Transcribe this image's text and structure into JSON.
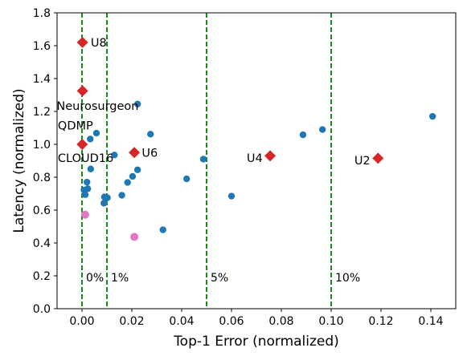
{
  "chart_data": {
    "type": "scatter",
    "xlabel": "Top-1 Error (normalized)",
    "ylabel": "Latency (normalized)",
    "xlim": [
      -0.01,
      0.15
    ],
    "ylim": [
      0.0,
      1.8
    ],
    "x_ticks": [
      0.0,
      0.02,
      0.04,
      0.06,
      0.08,
      0.1,
      0.12,
      0.14
    ],
    "x_tick_labels": [
      "0.00",
      "0.02",
      "0.04",
      "0.06",
      "0.08",
      "0.10",
      "0.12",
      "0.14"
    ],
    "y_ticks": [
      0.0,
      0.2,
      0.4,
      0.6,
      0.8,
      1.0,
      1.2,
      1.4,
      1.6,
      1.8
    ],
    "y_tick_labels": [
      "0.0",
      "0.2",
      "0.4",
      "0.6",
      "0.8",
      "1.0",
      "1.2",
      "1.4",
      "1.6",
      "1.8"
    ],
    "grid": false,
    "colors": {
      "blue": "#1f77b4",
      "pink": "#e377c2",
      "red": "#d62728",
      "green": "#008000"
    },
    "vlines": [
      {
        "x": 0.0,
        "label": "0%"
      },
      {
        "x": 0.01,
        "label": "1%"
      },
      {
        "x": 0.05,
        "label": "5%"
      },
      {
        "x": 0.1,
        "label": "10%"
      }
    ],
    "series": [
      {
        "marker": "circle",
        "color": "#1f77b4",
        "points": [
          {
            "x": 0.0223,
            "y": 1.245
          },
          {
            "x": 0.0275,
            "y": 1.062
          },
          {
            "x": 0.0058,
            "y": 1.068
          },
          {
            "x": 0.0033,
            "y": 1.032
          },
          {
            "x": 0.013,
            "y": 0.935
          },
          {
            "x": 0.0035,
            "y": 0.85
          },
          {
            "x": 0.0223,
            "y": 0.845
          },
          {
            "x": 0.0203,
            "y": 0.805
          },
          {
            "x": 0.0183,
            "y": 0.768
          },
          {
            "x": 0.002,
            "y": 0.77
          },
          {
            "x": 0.0023,
            "y": 0.73
          },
          {
            "x": 0.0008,
            "y": 0.722
          },
          {
            "x": 0.0013,
            "y": 0.694
          },
          {
            "x": 0.009,
            "y": 0.68
          },
          {
            "x": 0.0102,
            "y": 0.675
          },
          {
            "x": 0.0088,
            "y": 0.642
          },
          {
            "x": 0.016,
            "y": 0.69
          },
          {
            "x": 0.0325,
            "y": 0.48
          },
          {
            "x": 0.042,
            "y": 0.79
          },
          {
            "x": 0.0487,
            "y": 0.91
          },
          {
            "x": 0.06,
            "y": 0.685
          },
          {
            "x": 0.0887,
            "y": 1.058
          },
          {
            "x": 0.0965,
            "y": 1.09
          },
          {
            "x": 0.1407,
            "y": 1.17
          }
        ]
      },
      {
        "marker": "circle",
        "color": "#e377c2",
        "points": [
          {
            "x": 0.0013,
            "y": 0.572
          },
          {
            "x": 0.021,
            "y": 0.437
          }
        ]
      },
      {
        "marker": "diamond",
        "color": "#d62728",
        "points": [
          {
            "x": 0.0002,
            "y": 1.62
          },
          {
            "x": 0.0002,
            "y": 1.325
          },
          {
            "x": 0.0001,
            "y": 1.0
          },
          {
            "x": 0.021,
            "y": 0.95
          },
          {
            "x": 0.0755,
            "y": 0.93
          },
          {
            "x": 0.1188,
            "y": 0.915
          }
        ]
      }
    ],
    "annotations": [
      {
        "text": "U8",
        "x": 0.0035,
        "y": 1.62,
        "anchor": "start"
      },
      {
        "text": "Neurosurgeon",
        "x": -0.0102,
        "y": 1.235,
        "anchor": "start"
      },
      {
        "text": "QDMP",
        "x": -0.0097,
        "y": 1.115,
        "anchor": "start"
      },
      {
        "text": "CLOUD16",
        "x": -0.0097,
        "y": 0.918,
        "anchor": "start"
      },
      {
        "text": "U6",
        "x": 0.024,
        "y": 0.95,
        "anchor": "start"
      },
      {
        "text": "U4",
        "x": 0.0725,
        "y": 0.918,
        "anchor": "end"
      },
      {
        "text": "U2",
        "x": 0.1157,
        "y": 0.903,
        "anchor": "end"
      }
    ]
  }
}
